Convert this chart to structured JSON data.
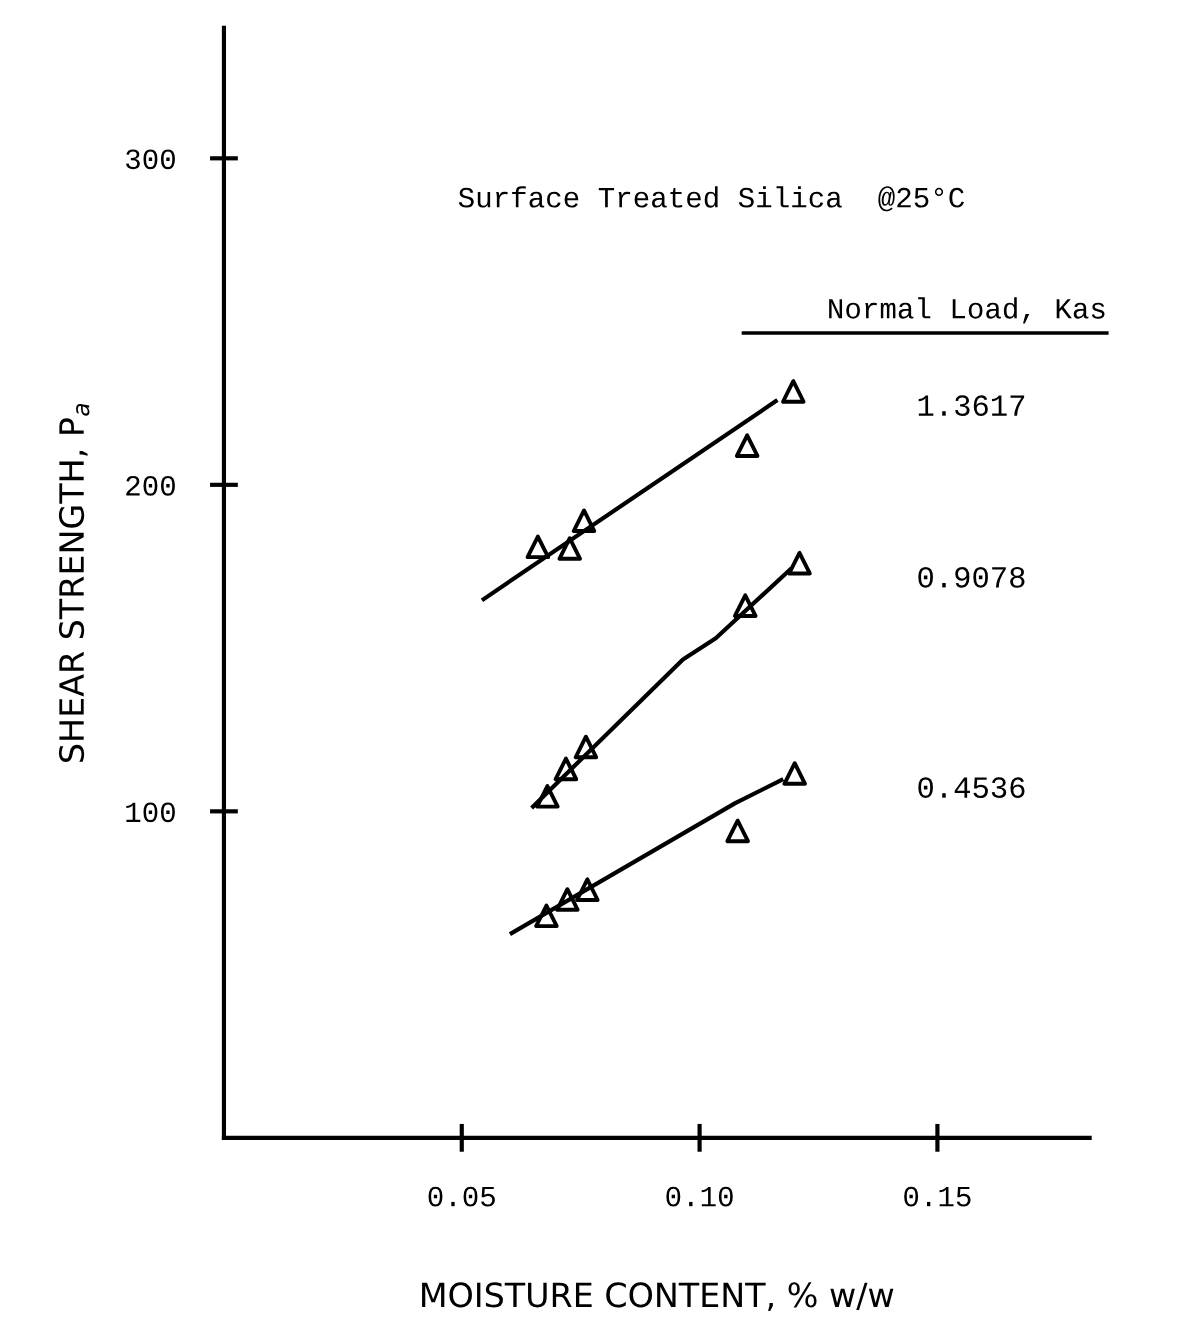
{
  "chart_data": {
    "type": "scatter",
    "title": "Surface Treated Silica  @25°C",
    "xlabel": "MOISTURE CONTENT, % w/w",
    "ylabel": "SHEAR STRENGTH, P$_{a}$",
    "legend_title": "Normal Load, Kas",
    "xlim": [
      0,
      0.182
    ],
    "ylim": [
      0,
      340
    ],
    "xticks": [
      {
        "value": 0.05,
        "label": "0.05"
      },
      {
        "value": 0.1,
        "label": "0.10"
      },
      {
        "value": 0.15,
        "label": "0.15"
      }
    ],
    "yticks": [
      100,
      200,
      300
    ],
    "grid": false,
    "marker": "triangle",
    "series": [
      {
        "name": "1.3617",
        "color": "#000000",
        "x": [
          0.066,
          0.0727,
          0.0757,
          0.11,
          0.1197
        ],
        "values": [
          181,
          180.5,
          189,
          212,
          228.6
        ]
      },
      {
        "type": "line",
        "marker": "none",
        "color": "#000000",
        "x": [
          0.0546,
          0.116
        ],
        "values": [
          165,
          225.6
        ]
      },
      {
        "name": "0.9078",
        "color": "#000000",
        "x": [
          0.068,
          0.0719,
          0.0761,
          0.1096,
          0.121
        ],
        "values": [
          104.6,
          113,
          119.7,
          163,
          176
        ]
      },
      {
        "type": "line",
        "marker": "none",
        "color": "#000000",
        "x": [
          0.065,
          0.0965,
          0.1034,
          0.119
        ],
        "values": [
          101.5,
          146.5,
          153,
          174
        ]
      },
      {
        "name": "0.4536",
        "color": "#000000",
        "x": [
          0.0678,
          0.0722,
          0.0764,
          0.108,
          0.12
        ],
        "values": [
          68,
          73,
          76,
          94,
          111.6
        ]
      },
      {
        "type": "line",
        "marker": "none",
        "color": "#000000",
        "x": [
          0.0605,
          0.1075,
          0.1172
        ],
        "values": [
          62.7,
          102.5,
          109.6
        ]
      }
    ]
  }
}
